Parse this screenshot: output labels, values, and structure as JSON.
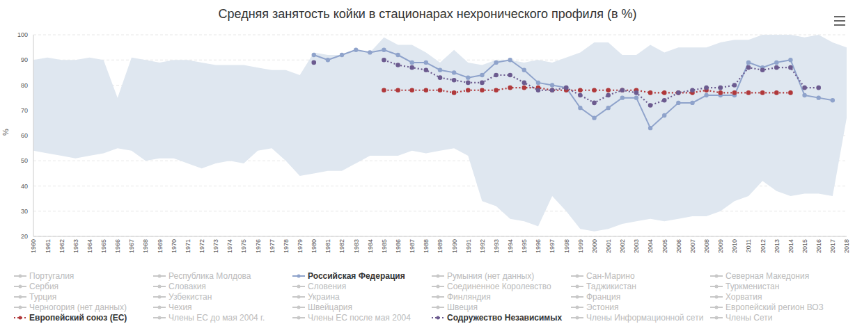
{
  "chart_data": {
    "type": "line",
    "title": "Средняя занятость койки в стационарах нехронического профиля (в %)",
    "y_label": "%",
    "categories": [
      "1960",
      "1961",
      "1962",
      "1963",
      "1964",
      "1965",
      "1966",
      "1967",
      "1968",
      "1969",
      "1970",
      "1971",
      "1972",
      "1973",
      "1974",
      "1975",
      "1976",
      "1977",
      "1978",
      "1979",
      "1980",
      "1981",
      "1982",
      "1983",
      "1984",
      "1985",
      "1986",
      "1987",
      "1988",
      "1989",
      "1990",
      "1991",
      "1992",
      "1993",
      "1994",
      "1995",
      "1996",
      "1997",
      "1998",
      "1999",
      "2000",
      "2001",
      "2002",
      "2003",
      "2004",
      "2005",
      "2006",
      "2007",
      "2008",
      "2009",
      "2010",
      "2011",
      "2012",
      "2013",
      "2014",
      "2015",
      "2016",
      "2017",
      "2018"
    ],
    "ylim": [
      20,
      100
    ],
    "yticks": [
      20,
      30,
      40,
      50,
      60,
      70,
      80,
      90,
      100
    ],
    "grid": true,
    "range": {
      "color": "#dfe7f0",
      "high": [
        90,
        91,
        90,
        90,
        91,
        90,
        75,
        91,
        90,
        89,
        90,
        90,
        89,
        88,
        88,
        88,
        87,
        86,
        86,
        84,
        93,
        92,
        92,
        94,
        93,
        99,
        96,
        96,
        93,
        89,
        94,
        89,
        88,
        90,
        90,
        89,
        90,
        89,
        91,
        93,
        97,
        97,
        92,
        92,
        96,
        93,
        95,
        95,
        95,
        97,
        98,
        98,
        100,
        100,
        100,
        99,
        100,
        97,
        95
      ],
      "low": [
        54,
        53,
        52,
        51,
        52,
        53,
        55,
        54,
        50,
        51,
        51,
        49,
        47,
        49,
        50,
        49,
        54,
        55,
        50,
        44,
        45,
        46,
        46,
        49,
        52,
        52,
        52,
        54,
        53,
        54,
        55,
        52,
        34,
        32,
        27,
        26,
        24,
        36,
        30,
        23,
        22,
        23,
        25,
        26,
        27,
        26,
        27,
        28,
        28,
        30,
        34,
        36,
        42,
        38,
        36,
        37,
        37,
        36,
        67
      ]
    },
    "series": [
      {
        "name": "Российская Федерация",
        "color": "#8fa3cb",
        "line_style": "solid",
        "marker": "circle",
        "values": [
          null,
          null,
          null,
          null,
          null,
          null,
          null,
          null,
          null,
          null,
          null,
          null,
          null,
          null,
          null,
          null,
          null,
          null,
          null,
          null,
          92,
          90,
          92,
          94,
          93,
          94,
          92,
          89,
          89,
          86,
          85,
          83,
          84,
          89,
          90,
          86,
          81,
          80,
          79,
          71,
          67,
          71,
          75,
          75,
          63,
          68,
          73,
          73,
          76,
          76,
          76,
          89,
          87,
          89,
          90,
          76,
          75,
          74,
          null
        ]
      },
      {
        "name": "Европейский союз (ЕС)",
        "color": "#b0393b",
        "line_style": "dotted",
        "marker": "circle",
        "values": [
          null,
          null,
          null,
          null,
          null,
          null,
          null,
          null,
          null,
          null,
          null,
          null,
          null,
          null,
          null,
          null,
          null,
          null,
          null,
          null,
          null,
          null,
          null,
          null,
          null,
          78,
          78,
          78,
          78,
          78,
          77,
          78,
          78,
          78,
          79,
          79,
          79,
          78,
          78,
          78,
          78,
          78,
          78,
          78,
          77,
          77,
          77,
          77,
          78,
          77,
          77,
          77,
          77,
          77,
          77,
          null,
          null,
          null,
          null
        ]
      },
      {
        "name": "Содружество Независимых",
        "color": "#6c5b8f",
        "line_style": "dotted",
        "marker": "circle",
        "values": [
          null,
          null,
          null,
          null,
          null,
          null,
          null,
          null,
          null,
          null,
          null,
          null,
          null,
          null,
          null,
          null,
          null,
          null,
          null,
          null,
          89,
          null,
          null,
          null,
          null,
          90,
          88,
          87,
          86,
          83,
          82,
          81,
          81,
          84,
          84,
          81,
          78,
          78,
          79,
          76,
          73,
          76,
          78,
          77,
          72,
          74,
          77,
          78,
          79,
          79,
          80,
          87,
          86,
          87,
          87,
          79,
          79,
          null,
          null
        ]
      }
    ],
    "legend_items": [
      "Португалия",
      "Республика Молдова",
      "Российская Федерация",
      "Румыния (нет данных)",
      "Сан-Марино",
      "Северная Македония",
      "Сербия",
      "Словакия",
      "Словения",
      "Соединенное Королевство",
      "Таджикистан",
      "Туркменистан",
      "Турция",
      "Узбекистан",
      "Украина",
      "Финляндия",
      "Франция",
      "Хорватия",
      "Черногория (нет данных)",
      "Чехия",
      "Швейцария",
      "Швеция",
      "Эстония",
      "Европейский регион ВОЗ",
      "Европейский союз (ЕС)",
      "Члены ЕС до мая 2004 г.",
      "Члены ЕС после мая 2004",
      "Содружество Независимых",
      "Члены Информационной сети",
      "Члены Сети"
    ]
  }
}
